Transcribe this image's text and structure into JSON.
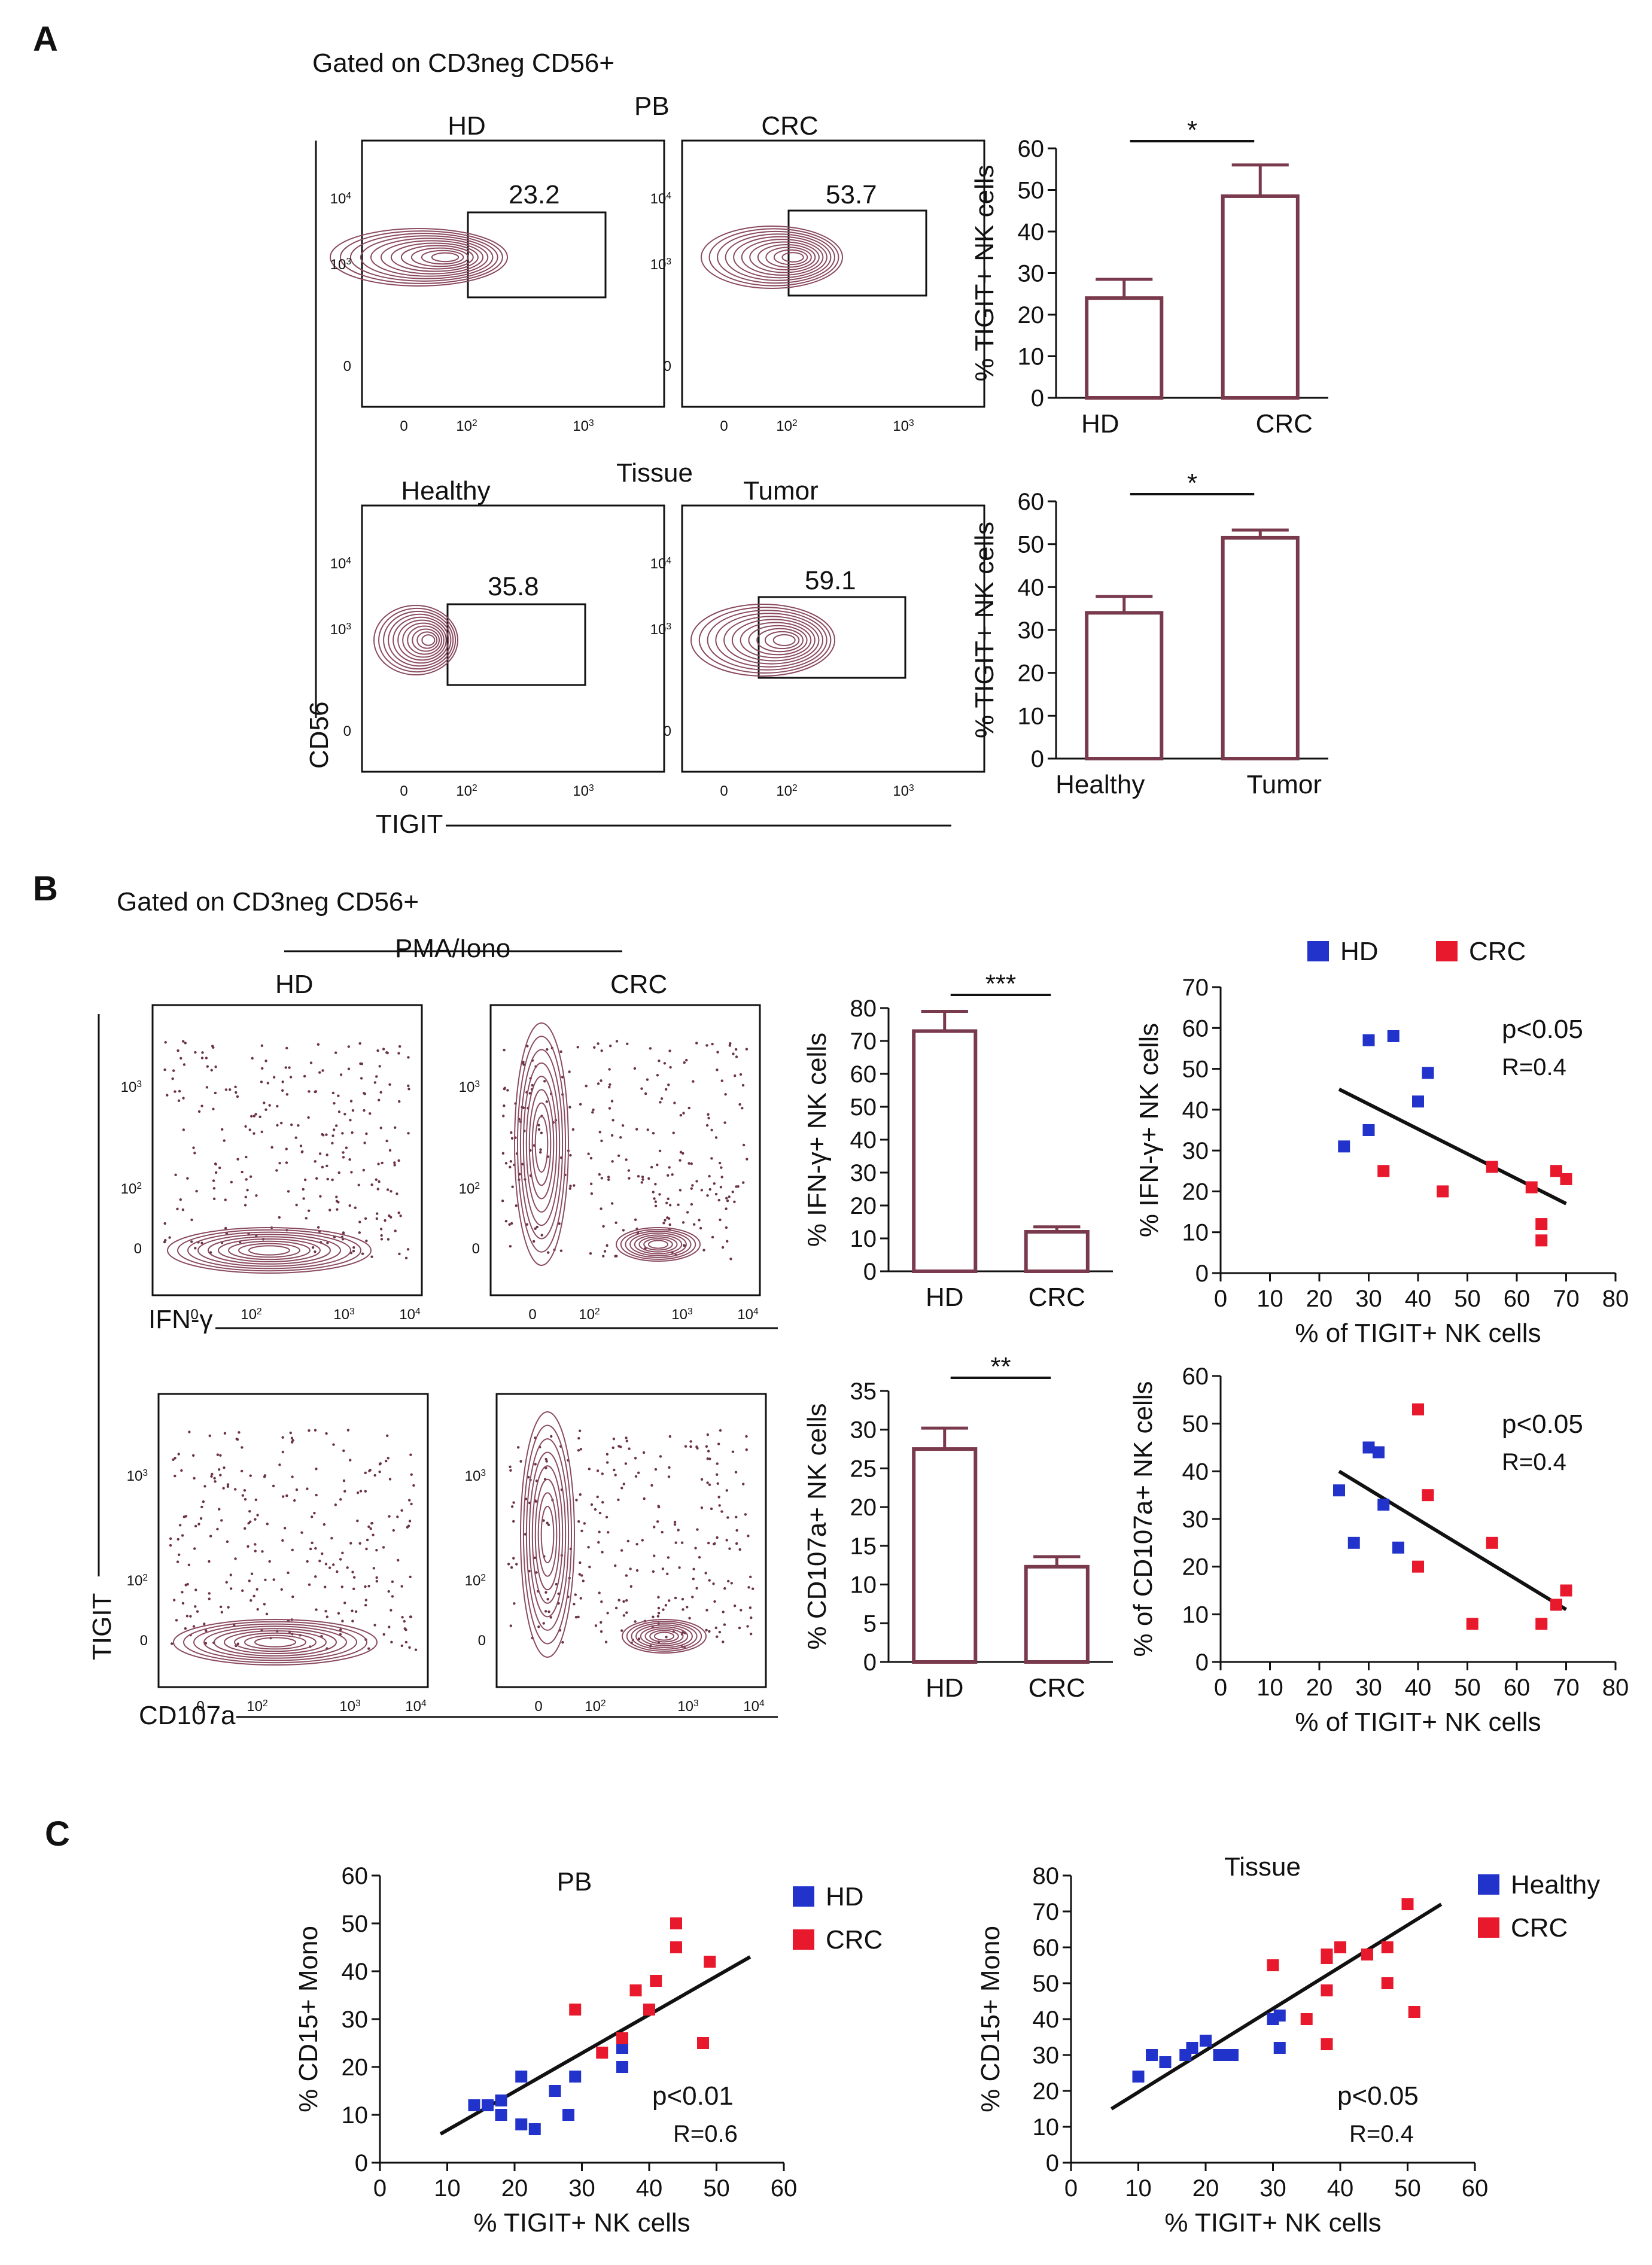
{
  "panels": {
    "A": {
      "letter": "A",
      "gating": "Gated on CD3neg CD56+"
    },
    "B": {
      "letter": "B",
      "gating": "Gated on CD3neg CD56+"
    },
    "C": {
      "letter": "C"
    }
  },
  "flow": {
    "pb_title": "PB",
    "tissue_title": "Tissue",
    "plots": [
      {
        "title": "HD",
        "gate_value": "23.2"
      },
      {
        "title": "CRC",
        "gate_value": "53.7"
      },
      {
        "title": "Healthy",
        "gate_value": "35.8"
      },
      {
        "title": "Tumor",
        "gate_value": "59.1"
      }
    ],
    "y_ticks": [
      "0",
      "10",
      "10",
      "10"
    ],
    "y_exps": [
      "",
      "3",
      "4",
      ""
    ],
    "x_ticks": [
      "0",
      "10",
      "10"
    ],
    "x_exps": [
      "",
      "2",
      "3"
    ],
    "ylabel": "CD56",
    "xlabel": "TIGIT",
    "b_header": "PMA/Iono",
    "b_hd": "HD",
    "b_crc": "CRC",
    "b_ylabel": "TIGIT",
    "b_xlabel_top": "IFN-γ",
    "b_xlabel_bottom": "CD107a",
    "b_y_tick_labels": [
      "0",
      "10",
      "10"
    ],
    "b_y_exps": [
      "",
      "2",
      "3"
    ],
    "b_x_tick_labels": [
      "0",
      "10",
      "10",
      "10"
    ],
    "b_x_exps": [
      "",
      "2",
      "3",
      "4"
    ]
  },
  "chart_data": [
    {
      "id": "a-pb-bar",
      "type": "bar",
      "categories": [
        "HD",
        "CRC"
      ],
      "values": [
        24,
        48.5
      ],
      "errors": [
        4.5,
        7.5
      ],
      "ylabel": "% TIGIT+ NK cells",
      "ylim": [
        0,
        60
      ],
      "yticks": [
        0,
        10,
        20,
        30,
        40,
        50,
        60
      ],
      "significance": "*"
    },
    {
      "id": "a-tissue-bar",
      "type": "bar",
      "categories": [
        "Healthy",
        "Tumor"
      ],
      "values": [
        34,
        51.5
      ],
      "errors": [
        3.8,
        1.8
      ],
      "ylabel": "% TIGIT+ NK cells",
      "ylim": [
        0,
        60
      ],
      "yticks": [
        0,
        10,
        20,
        30,
        40,
        50,
        60
      ],
      "significance": "*"
    },
    {
      "id": "b-ifn-bar",
      "type": "bar",
      "categories": [
        "HD",
        "CRC"
      ],
      "values": [
        73,
        12
      ],
      "errors": [
        6,
        1.5
      ],
      "ylabel": "% IFN-γ+ NK cells",
      "ylim": [
        0,
        80
      ],
      "yticks": [
        0,
        10,
        20,
        30,
        40,
        50,
        60,
        70,
        80
      ],
      "significance": "***"
    },
    {
      "id": "b-cd107-bar",
      "type": "bar",
      "categories": [
        "HD",
        "CRC"
      ],
      "values": [
        27.5,
        12.3
      ],
      "errors": [
        2.7,
        1.3
      ],
      "ylabel": "% CD107a+ NK cells",
      "ylim": [
        0,
        35
      ],
      "yticks": [
        0,
        5,
        10,
        15,
        20,
        25,
        30,
        35
      ],
      "significance": "**"
    },
    {
      "id": "b-ifn-scatter",
      "type": "scatter",
      "xlabel": "% of TIGIT+ NK cells",
      "ylabel": "% IFN-γ+ NK cells",
      "xlim": [
        0,
        80
      ],
      "ylim": [
        0,
        70
      ],
      "xticks": [
        0,
        10,
        20,
        30,
        40,
        50,
        60,
        70,
        80
      ],
      "yticks": [
        0,
        10,
        20,
        30,
        40,
        50,
        60,
        70
      ],
      "stats": [
        "p<0.05",
        "R=0.4"
      ],
      "legend_position": "top",
      "fit": [
        [
          24,
          45
        ],
        [
          70,
          17
        ]
      ],
      "series": [
        {
          "name": "HD",
          "color": "#2233cc",
          "points": [
            [
              25,
              31
            ],
            [
              30,
              57
            ],
            [
              30,
              35
            ],
            [
              35,
              58
            ],
            [
              40,
              42
            ],
            [
              42,
              49
            ]
          ]
        },
        {
          "name": "CRC",
          "color": "#e8192c",
          "points": [
            [
              33,
              25
            ],
            [
              45,
              20
            ],
            [
              55,
              26
            ],
            [
              63,
              21
            ],
            [
              65,
              12
            ],
            [
              65,
              8
            ],
            [
              68,
              25
            ],
            [
              70,
              23
            ]
          ]
        }
      ]
    },
    {
      "id": "b-cd107-scatter",
      "type": "scatter",
      "xlabel": "% of TIGIT+ NK cells",
      "ylabel": "% of CD107a+ NK cells",
      "xlim": [
        0,
        80
      ],
      "ylim": [
        0,
        60
      ],
      "xticks": [
        0,
        10,
        20,
        30,
        40,
        50,
        60,
        70,
        80
      ],
      "yticks": [
        0,
        10,
        20,
        30,
        40,
        50,
        60
      ],
      "stats": [
        "p<0.05",
        "R=0.4"
      ],
      "fit": [
        [
          24,
          40
        ],
        [
          70,
          11
        ]
      ],
      "series": [
        {
          "color": "#2233cc",
          "points": [
            [
              24,
              36
            ],
            [
              27,
              25
            ],
            [
              30,
              45
            ],
            [
              32,
              44
            ],
            [
              33,
              33
            ],
            [
              36,
              24
            ]
          ]
        },
        {
          "color": "#e8192c",
          "points": [
            [
              40,
              53
            ],
            [
              40,
              20
            ],
            [
              42,
              35
            ],
            [
              51,
              8
            ],
            [
              55,
              25
            ],
            [
              65,
              8
            ],
            [
              68,
              12
            ],
            [
              70,
              15
            ]
          ]
        }
      ]
    },
    {
      "id": "c-pb-scatter",
      "type": "scatter",
      "title": "PB",
      "xlabel": "% TIGIT+ NK cells",
      "ylabel": "% CD15+ Mono",
      "xlim": [
        0,
        60
      ],
      "ylim": [
        0,
        60
      ],
      "xticks": [
        0,
        10,
        20,
        30,
        40,
        50,
        60
      ],
      "yticks": [
        0,
        10,
        20,
        30,
        40,
        50,
        60
      ],
      "stats": [
        "p<0.01",
        "R=0.6"
      ],
      "legend_position": "top-right",
      "fit": [
        [
          9,
          6
        ],
        [
          55,
          43
        ]
      ],
      "series": [
        {
          "name": "HD",
          "color": "#2233cc",
          "points": [
            [
              14,
              12
            ],
            [
              16,
              12
            ],
            [
              18,
              13
            ],
            [
              18,
              10
            ],
            [
              21,
              18
            ],
            [
              21,
              8
            ],
            [
              23,
              7
            ],
            [
              26,
              15
            ],
            [
              28,
              10
            ],
            [
              29,
              18
            ],
            [
              36,
              24
            ],
            [
              36,
              20
            ]
          ]
        },
        {
          "name": "CRC",
          "color": "#e8192c",
          "points": [
            [
              29,
              32
            ],
            [
              33,
              23
            ],
            [
              36,
              26
            ],
            [
              38,
              36
            ],
            [
              40,
              32
            ],
            [
              41,
              38
            ],
            [
              44,
              45
            ],
            [
              44,
              50
            ],
            [
              48,
              25
            ],
            [
              49,
              42
            ]
          ]
        }
      ]
    },
    {
      "id": "c-tissue-scatter",
      "type": "scatter",
      "title": "Tissue",
      "xlabel": "% TIGIT+ NK cells",
      "ylabel": "% CD15+ Mono",
      "xlim": [
        0,
        60
      ],
      "ylim": [
        0,
        80
      ],
      "xticks": [
        0,
        10,
        20,
        30,
        40,
        50,
        60
      ],
      "yticks": [
        0,
        10,
        20,
        30,
        40,
        50,
        60,
        70,
        80
      ],
      "stats": [
        "p<0.05",
        "R=0.4"
      ],
      "legend_position": "top-right",
      "fit": [
        [
          6,
          15
        ],
        [
          55,
          72
        ]
      ],
      "series": [
        {
          "name": "Healthy",
          "color": "#2233cc",
          "points": [
            [
              10,
              24
            ],
            [
              12,
              30
            ],
            [
              14,
              28
            ],
            [
              17,
              30
            ],
            [
              18,
              32
            ],
            [
              20,
              34
            ],
            [
              22,
              30
            ],
            [
              23,
              30
            ],
            [
              24,
              30
            ],
            [
              30,
              40
            ],
            [
              31,
              41
            ],
            [
              31,
              32
            ]
          ]
        },
        {
          "name": "CRC",
          "color": "#e8192c",
          "points": [
            [
              30,
              55
            ],
            [
              35,
              40
            ],
            [
              38,
              58
            ],
            [
              38,
              57
            ],
            [
              38,
              48
            ],
            [
              38,
              33
            ],
            [
              40,
              60
            ],
            [
              44,
              58
            ],
            [
              47,
              60
            ],
            [
              47,
              50
            ],
            [
              50,
              72
            ],
            [
              51,
              42
            ]
          ]
        }
      ]
    }
  ]
}
